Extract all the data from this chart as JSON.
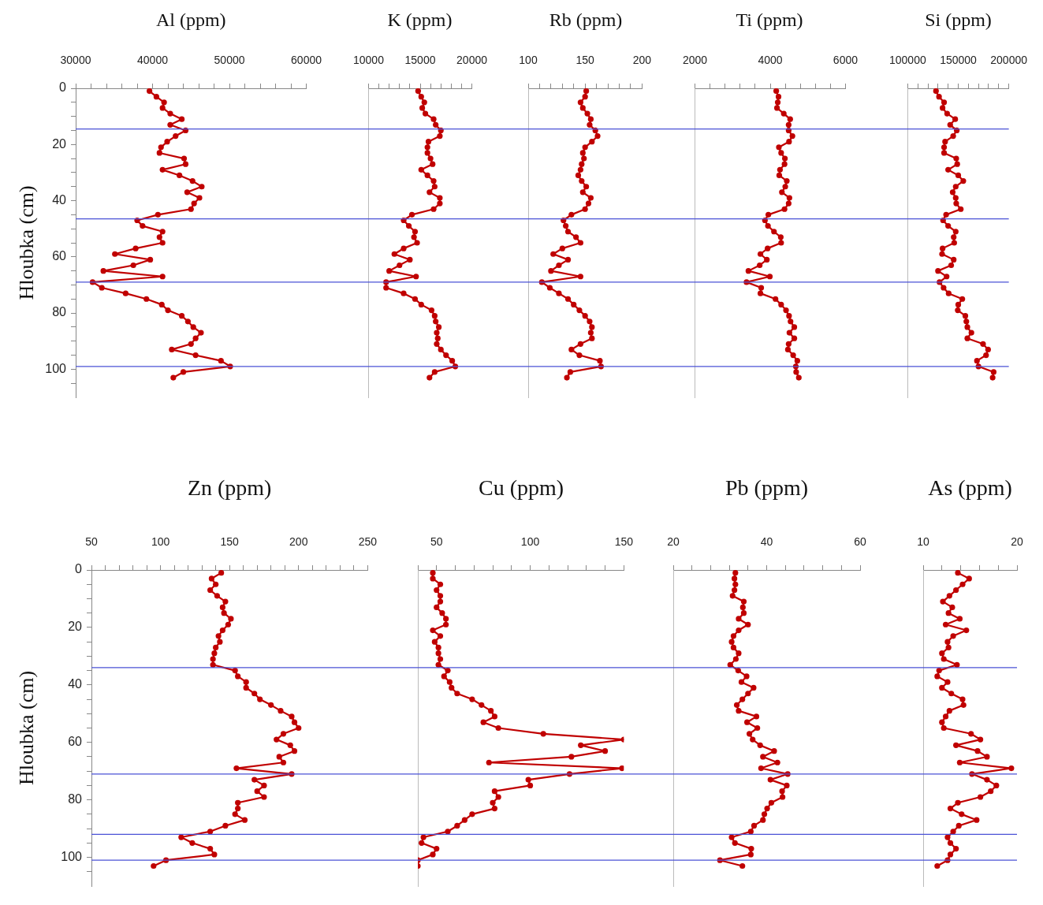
{
  "chart_data": [
    {
      "type": "line",
      "title": "Al (ppm)",
      "ylabel": "Hloubka (cm)",
      "marker": "circle",
      "series": [
        {
          "color": "#c00000",
          "x": [
            39600,
            40500,
            41500,
            41300,
            42300,
            43800,
            42300,
            44300,
            43000,
            41900,
            41100,
            40900,
            44100,
            44300,
            41300,
            43500,
            45200,
            46400,
            44500,
            46100,
            45400,
            45000,
            40700,
            38000,
            38700,
            41300,
            40900,
            41300,
            37800,
            35100,
            39700,
            37500,
            33600,
            41300,
            32200,
            33400,
            36500,
            39200,
            41200,
            42000,
            43800,
            44600,
            45300,
            46300,
            45600,
            45000,
            42500,
            45600,
            48900,
            50100,
            44000,
            42700
          ],
          "values": [
            1,
            3,
            5,
            7,
            9,
            11,
            13,
            15,
            17,
            19,
            21,
            23,
            25,
            27,
            29,
            31,
            33,
            35,
            37,
            39,
            41,
            43,
            45,
            47,
            49,
            51,
            53,
            55,
            57,
            59,
            61,
            63,
            65,
            67,
            69,
            71,
            73,
            75,
            77,
            79,
            81,
            83,
            85,
            87,
            89,
            91,
            93,
            95,
            97,
            99,
            101,
            103
          ]
        }
      ],
      "xlim": [
        30000,
        60000
      ],
      "xticks": [
        30000,
        {
          "value": 32000,
          "label": null
        },
        {
          "value": 34000,
          "label": null
        },
        {
          "value": 36000,
          "label": null
        },
        {
          "value": 38000,
          "label": null
        },
        40000,
        {
          "value": 42000,
          "label": null
        },
        {
          "value": 44000,
          "label": null
        },
        {
          "value": 46000,
          "label": null
        },
        {
          "value": 48000,
          "label": null
        },
        50000,
        {
          "value": 52000,
          "label": null
        },
        {
          "value": 54000,
          "label": null
        },
        {
          "value": 56000,
          "label": null
        },
        {
          "value": 58000,
          "label": null
        },
        60000
      ],
      "ylim": [
        110,
        0
      ],
      "yticks": [
        0,
        {
          "value": 5,
          "label": null
        },
        {
          "value": 10,
          "label": null
        },
        {
          "value": 15,
          "label": null
        },
        20,
        {
          "value": 25,
          "label": null
        },
        {
          "value": 30,
          "label": null
        },
        {
          "value": 35,
          "label": null
        },
        40,
        {
          "value": 45,
          "label": null
        },
        {
          "value": 50,
          "label": null
        },
        {
          "value": 55,
          "label": null
        },
        60,
        {
          "value": 65,
          "label": null
        },
        {
          "value": 70,
          "label": null
        },
        {
          "value": 75,
          "label": null
        },
        80,
        {
          "value": 85,
          "label": null
        },
        {
          "value": 90,
          "label": null
        },
        {
          "value": 95,
          "label": null
        },
        100,
        {
          "value": 105,
          "label": null
        }
      ],
      "ref_lines": [
        {
          "axis": "y",
          "value": 14.5,
          "color": "#4a52d6"
        },
        {
          "axis": "y",
          "value": 46.5,
          "color": "#4a52d6"
        },
        {
          "axis": "y",
          "value": 69,
          "color": "#4a52d6"
        },
        {
          "axis": "y",
          "value": 99,
          "color": "#4a52d6"
        }
      ]
    },
    {
      "type": "line",
      "title": "K (ppm)",
      "marker": "circle",
      "tick_labels": "x",
      "series": [
        {
          "color": "#c00000",
          "x": [
            14800,
            15100,
            15400,
            15200,
            15500,
            16300,
            16500,
            17000,
            16900,
            15800,
            15700,
            15700,
            16000,
            16200,
            15100,
            15700,
            16300,
            16400,
            15900,
            16900,
            16900,
            16300,
            14200,
            13400,
            13900,
            14500,
            14400,
            14700,
            13400,
            12500,
            14000,
            13000,
            12000,
            14600,
            11700,
            11700,
            13400,
            14500,
            15100,
            16100,
            16400,
            16500,
            16800,
            16600,
            16700,
            16600,
            17000,
            17500,
            18100,
            18400,
            16400,
            15900
          ],
          "values": [
            1,
            3,
            5,
            7,
            9,
            11,
            13,
            15,
            17,
            19,
            21,
            23,
            25,
            27,
            29,
            31,
            33,
            35,
            37,
            39,
            41,
            43,
            45,
            47,
            49,
            51,
            53,
            55,
            57,
            59,
            61,
            63,
            65,
            67,
            69,
            71,
            73,
            75,
            77,
            79,
            81,
            83,
            85,
            87,
            89,
            91,
            93,
            95,
            97,
            99,
            101,
            103
          ]
        }
      ],
      "ylim": [
        110,
        0
      ],
      "xlim": [
        10000,
        20000
      ],
      "xticks": [
        10000,
        {
          "value": 11000,
          "label": null
        },
        {
          "value": 12000,
          "label": null
        },
        {
          "value": 13000,
          "label": null
        },
        {
          "value": 14000,
          "label": null
        },
        15000,
        {
          "value": 16000,
          "label": null
        },
        {
          "value": 17000,
          "label": null
        },
        {
          "value": 18000,
          "label": null
        },
        {
          "value": 19000,
          "label": null
        },
        20000
      ],
      "ref_lines": [
        {
          "axis": "y",
          "value": 14.5,
          "color": "#4a52d6"
        },
        {
          "axis": "y",
          "value": 46.5,
          "color": "#4a52d6"
        },
        {
          "axis": "y",
          "value": 69,
          "color": "#4a52d6"
        },
        {
          "axis": "y",
          "value": 99,
          "color": "#4a52d6"
        }
      ]
    },
    {
      "type": "line",
      "title": "Rb (ppm)",
      "marker": "circle",
      "tick_labels": "x",
      "series": [
        {
          "color": "#c00000",
          "x": [
            151,
            150,
            146,
            148,
            152,
            155,
            154,
            159,
            161,
            156,
            150,
            148,
            149,
            147,
            146,
            144,
            147,
            151,
            148,
            155,
            153,
            150,
            138,
            131,
            133,
            135,
            142,
            146,
            130,
            122,
            135,
            127,
            120,
            146,
            112,
            119,
            127,
            135,
            140,
            145,
            150,
            154,
            156,
            155,
            156,
            146,
            138,
            145,
            163,
            164,
            137,
            134
          ],
          "values": [
            1,
            3,
            5,
            7,
            9,
            11,
            13,
            15,
            17,
            19,
            21,
            23,
            25,
            27,
            29,
            31,
            33,
            35,
            37,
            39,
            41,
            43,
            45,
            47,
            49,
            51,
            53,
            55,
            57,
            59,
            61,
            63,
            65,
            67,
            69,
            71,
            73,
            75,
            77,
            79,
            81,
            83,
            85,
            87,
            89,
            91,
            93,
            95,
            97,
            99,
            101,
            103
          ]
        }
      ],
      "ylim": [
        110,
        0
      ],
      "xlim": [
        100,
        200
      ],
      "xticks": [
        100,
        {
          "value": 110,
          "label": null
        },
        {
          "value": 120,
          "label": null
        },
        {
          "value": 130,
          "label": null
        },
        {
          "value": 140,
          "label": null
        },
        150,
        {
          "value": 160,
          "label": null
        },
        {
          "value": 170,
          "label": null
        },
        {
          "value": 180,
          "label": null
        },
        {
          "value": 190,
          "label": null
        },
        200
      ],
      "ref_lines": [
        {
          "axis": "y",
          "value": 14.5,
          "color": "#4a52d6"
        },
        {
          "axis": "y",
          "value": 46.5,
          "color": "#4a52d6"
        },
        {
          "axis": "y",
          "value": 69,
          "color": "#4a52d6"
        },
        {
          "axis": "y",
          "value": 99,
          "color": "#4a52d6"
        }
      ]
    },
    {
      "type": "line",
      "title": "Ti (ppm)",
      "marker": "circle",
      "tick_labels": "x",
      "series": [
        {
          "color": "#c00000",
          "x": [
            4160,
            4220,
            4200,
            4180,
            4360,
            4530,
            4490,
            4490,
            4590,
            4500,
            4230,
            4290,
            4390,
            4380,
            4260,
            4240,
            4440,
            4400,
            4310,
            4510,
            4490,
            4380,
            3950,
            3860,
            3940,
            4100,
            4280,
            4290,
            3930,
            3740,
            3910,
            3720,
            3420,
            3990,
            3370,
            3760,
            3740,
            4140,
            4290,
            4420,
            4500,
            4540,
            4640,
            4510,
            4640,
            4490,
            4470,
            4610,
            4720,
            4680,
            4690,
            4760
          ],
          "values": [
            1,
            3,
            5,
            7,
            9,
            11,
            13,
            15,
            17,
            19,
            21,
            23,
            25,
            27,
            29,
            31,
            33,
            35,
            37,
            39,
            41,
            43,
            45,
            47,
            49,
            51,
            53,
            55,
            57,
            59,
            61,
            63,
            65,
            67,
            69,
            71,
            73,
            75,
            77,
            79,
            81,
            83,
            85,
            87,
            89,
            91,
            93,
            95,
            97,
            99,
            101,
            103
          ]
        }
      ],
      "ylim": [
        110,
        0
      ],
      "xlim": [
        2000,
        6000
      ],
      "xticks": [
        2000,
        {
          "value": 2400,
          "label": null
        },
        {
          "value": 2800,
          "label": null
        },
        {
          "value": 3200,
          "label": null
        },
        {
          "value": 3600,
          "label": null
        },
        4000,
        {
          "value": 4400,
          "label": null
        },
        {
          "value": 4800,
          "label": null
        },
        {
          "value": 5200,
          "label": null
        },
        {
          "value": 5600,
          "label": null
        },
        6000
      ],
      "ref_lines": [
        {
          "axis": "y",
          "value": 14.5,
          "color": "#4a52d6"
        },
        {
          "axis": "y",
          "value": 46.5,
          "color": "#4a52d6"
        },
        {
          "axis": "y",
          "value": 69,
          "color": "#4a52d6"
        },
        {
          "axis": "y",
          "value": 99,
          "color": "#4a52d6"
        }
      ]
    },
    {
      "type": "line",
      "title": "Si (ppm)",
      "marker": "circle",
      "tick_labels": "x",
      "series": [
        {
          "color": "#c00000",
          "x": [
            128000,
            131000,
            136000,
            134500,
            139000,
            147000,
            142000,
            148500,
            145000,
            137000,
            136000,
            136000,
            148000,
            149000,
            140000,
            150000,
            155000,
            147500,
            144500,
            147500,
            148000,
            152500,
            138000,
            135000,
            140000,
            147500,
            145500,
            146000,
            134500,
            134000,
            145500,
            143000,
            130000,
            138500,
            131500,
            135500,
            140500,
            154000,
            150000,
            149500,
            157000,
            158000,
            159000,
            163000,
            159000,
            174500,
            179500,
            177500,
            168500,
            170000,
            185000,
            184000
          ],
          "values": [
            1,
            3,
            5,
            7,
            9,
            11,
            13,
            15,
            17,
            19,
            21,
            23,
            25,
            27,
            29,
            31,
            33,
            35,
            37,
            39,
            41,
            43,
            45,
            47,
            49,
            51,
            53,
            55,
            57,
            59,
            61,
            63,
            65,
            67,
            69,
            71,
            73,
            75,
            77,
            79,
            81,
            83,
            85,
            87,
            89,
            91,
            93,
            95,
            97,
            99,
            101,
            103
          ]
        }
      ],
      "ylim": [
        110,
        0
      ],
      "xlim": [
        100000,
        200000
      ],
      "xticks": [
        100000,
        {
          "value": 110000,
          "label": null
        },
        {
          "value": 120000,
          "label": null
        },
        {
          "value": 130000,
          "label": null
        },
        {
          "value": 140000,
          "label": null
        },
        150000,
        {
          "value": 160000,
          "label": null
        },
        {
          "value": 170000,
          "label": null
        },
        {
          "value": 180000,
          "label": null
        },
        {
          "value": 190000,
          "label": null
        },
        200000
      ],
      "ref_lines": [
        {
          "axis": "y",
          "value": 14.5,
          "color": "#4a52d6"
        },
        {
          "axis": "y",
          "value": 46.5,
          "color": "#4a52d6"
        },
        {
          "axis": "y",
          "value": 69,
          "color": "#4a52d6"
        },
        {
          "axis": "y",
          "value": 99,
          "color": "#4a52d6"
        }
      ]
    },
    {
      "type": "line",
      "title": "Zn (ppm)",
      "ylabel": "Hloubka (cm)",
      "marker": "circle",
      "series": [
        {
          "color": "#c00000",
          "x": [
            144,
            137,
            140,
            136,
            141,
            147,
            145,
            146,
            151,
            149,
            145,
            142,
            143,
            140,
            139,
            138,
            138,
            154,
            156,
            162,
            162,
            168,
            172,
            180,
            187,
            195,
            197,
            200,
            189,
            184,
            194,
            197,
            186,
            189,
            155,
            195,
            168,
            175,
            170,
            175,
            156,
            156,
            154,
            161,
            147,
            136,
            115,
            123,
            136,
            139,
            104,
            95
          ],
          "values": [
            1,
            3,
            5,
            7,
            9,
            11,
            13,
            15,
            17,
            19,
            21,
            23,
            25,
            27,
            29,
            31,
            33,
            35,
            37,
            39,
            41,
            43,
            45,
            47,
            49,
            51,
            53,
            55,
            57,
            59,
            61,
            63,
            65,
            67,
            69,
            71,
            73,
            75,
            77,
            79,
            81,
            83,
            85,
            87,
            89,
            91,
            93,
            95,
            97,
            99,
            101,
            103
          ]
        }
      ],
      "xlim": [
        50,
        250
      ],
      "xticks": [
        50,
        {
          "value": 60,
          "label": null
        },
        {
          "value": 70,
          "label": null
        },
        {
          "value": 80,
          "label": null
        },
        {
          "value": 90,
          "label": null
        },
        100,
        {
          "value": 110,
          "label": null
        },
        {
          "value": 120,
          "label": null
        },
        {
          "value": 130,
          "label": null
        },
        {
          "value": 140,
          "label": null
        },
        150,
        {
          "value": 160,
          "label": null
        },
        {
          "value": 170,
          "label": null
        },
        {
          "value": 180,
          "label": null
        },
        {
          "value": 190,
          "label": null
        },
        200,
        {
          "value": 210,
          "label": null
        },
        {
          "value": 220,
          "label": null
        },
        {
          "value": 230,
          "label": null
        },
        {
          "value": 240,
          "label": null
        },
        250
      ],
      "ylim": [
        110,
        0
      ],
      "yticks": [
        0,
        {
          "value": 5,
          "label": null
        },
        {
          "value": 10,
          "label": null
        },
        {
          "value": 15,
          "label": null
        },
        20,
        {
          "value": 25,
          "label": null
        },
        {
          "value": 30,
          "label": null
        },
        {
          "value": 35,
          "label": null
        },
        40,
        {
          "value": 45,
          "label": null
        },
        {
          "value": 50,
          "label": null
        },
        {
          "value": 55,
          "label": null
        },
        60,
        {
          "value": 65,
          "label": null
        },
        {
          "value": 70,
          "label": null
        },
        {
          "value": 75,
          "label": null
        },
        80,
        {
          "value": 85,
          "label": null
        },
        {
          "value": 90,
          "label": null
        },
        {
          "value": 95,
          "label": null
        },
        100,
        {
          "value": 105,
          "label": null
        }
      ],
      "ref_lines": [
        {
          "axis": "y",
          "value": 34,
          "color": "#4a52d6"
        },
        {
          "axis": "y",
          "value": 71,
          "color": "#4a52d6"
        },
        {
          "axis": "y",
          "value": 92,
          "color": "#4a52d6"
        },
        {
          "axis": "y",
          "value": 101,
          "color": "#4a52d6"
        }
      ]
    },
    {
      "type": "line",
      "title": "Cu (ppm)",
      "marker": "circle",
      "tick_labels": "x",
      "series": [
        {
          "color": "#c00000",
          "x": [
            48,
            48,
            52,
            50,
            52,
            52,
            50,
            53,
            55,
            55,
            48,
            52,
            49,
            51,
            51,
            52,
            51,
            56,
            54,
            57,
            58,
            61,
            69,
            74,
            79,
            81,
            75,
            83,
            107,
            150,
            127,
            140,
            122,
            78,
            149,
            121,
            99,
            100,
            81,
            83,
            80,
            81,
            69,
            65,
            61,
            56,
            43,
            42,
            50,
            48,
            40,
            40
          ],
          "values": [
            1,
            3,
            5,
            7,
            9,
            11,
            13,
            15,
            17,
            19,
            21,
            23,
            25,
            27,
            29,
            31,
            33,
            35,
            37,
            39,
            41,
            43,
            45,
            47,
            49,
            51,
            53,
            55,
            57,
            59,
            61,
            63,
            65,
            67,
            69,
            71,
            73,
            75,
            77,
            79,
            81,
            83,
            85,
            87,
            89,
            91,
            93,
            95,
            97,
            99,
            101,
            103
          ]
        }
      ],
      "ylim": [
        110,
        0
      ],
      "xlim": [
        40,
        150
      ],
      "xticks": [
        {
          "value": 40,
          "label": null
        },
        50,
        {
          "value": 60,
          "label": null
        },
        {
          "value": 70,
          "label": null
        },
        {
          "value": 80,
          "label": null
        },
        {
          "value": 90,
          "label": null
        },
        100,
        {
          "value": 110,
          "label": null
        },
        {
          "value": 120,
          "label": null
        },
        {
          "value": 130,
          "label": null
        },
        {
          "value": 140,
          "label": null
        },
        150
      ],
      "ref_lines": [
        {
          "axis": "y",
          "value": 34,
          "color": "#4a52d6"
        },
        {
          "axis": "y",
          "value": 71,
          "color": "#4a52d6"
        },
        {
          "axis": "y",
          "value": 92,
          "color": "#4a52d6"
        },
        {
          "axis": "y",
          "value": 101,
          "color": "#4a52d6"
        }
      ]
    },
    {
      "type": "line",
      "title": "Pb (ppm)",
      "marker": "circle",
      "tick_labels": "x",
      "series": [
        {
          "color": "#c00000",
          "x": [
            33.3,
            33.1,
            33.3,
            33.1,
            32.7,
            35.1,
            34.9,
            35.1,
            34,
            36,
            34,
            32.9,
            32.5,
            32.9,
            34,
            33.4,
            32.2,
            33.9,
            35.7,
            34.6,
            37.2,
            36,
            34.8,
            33.6,
            34,
            37.8,
            35.8,
            38,
            36.3,
            37,
            38.6,
            41.6,
            39.2,
            42.3,
            38.8,
            44.5,
            40.8,
            44.3,
            43.3,
            43.4,
            41,
            40.1,
            39.5,
            39.2,
            37.3,
            36.6,
            32.5,
            33.2,
            36.7,
            36.6,
            30,
            34.8
          ],
          "values": [
            1,
            3,
            5,
            7,
            9,
            11,
            13,
            15,
            17,
            19,
            21,
            23,
            25,
            27,
            29,
            31,
            33,
            35,
            37,
            39,
            41,
            43,
            45,
            47,
            49,
            51,
            53,
            55,
            57,
            59,
            61,
            63,
            65,
            67,
            69,
            71,
            73,
            75,
            77,
            79,
            81,
            83,
            85,
            87,
            89,
            91,
            93,
            95,
            97,
            99,
            101,
            103
          ]
        }
      ],
      "ylim": [
        110,
        0
      ],
      "xlim": [
        20,
        60
      ],
      "xticks": [
        20,
        {
          "value": 24,
          "label": null
        },
        {
          "value": 28,
          "label": null
        },
        {
          "value": 32,
          "label": null
        },
        {
          "value": 36,
          "label": null
        },
        40,
        {
          "value": 44,
          "label": null
        },
        {
          "value": 48,
          "label": null
        },
        {
          "value": 52,
          "label": null
        },
        {
          "value": 56,
          "label": null
        },
        60
      ],
      "ref_lines": [
        {
          "axis": "y",
          "value": 34,
          "color": "#4a52d6"
        },
        {
          "axis": "y",
          "value": 71,
          "color": "#4a52d6"
        },
        {
          "axis": "y",
          "value": 92,
          "color": "#4a52d6"
        },
        {
          "axis": "y",
          "value": 101,
          "color": "#4a52d6"
        }
      ]
    },
    {
      "type": "line",
      "title": "As (ppm)",
      "marker": "circle",
      "tick_labels": "x",
      "series": [
        {
          "color": "#c00000",
          "x": [
            13.7,
            14.9,
            14.2,
            13.5,
            12.8,
            12.1,
            13.1,
            12.7,
            13.9,
            12.4,
            14.6,
            13.2,
            12.6,
            12.7,
            12,
            12.2,
            13.6,
            11.7,
            11.5,
            12.6,
            12,
            13,
            14.2,
            14.3,
            12.8,
            12.4,
            12,
            12.2,
            15.1,
            16.1,
            13.5,
            15.8,
            16.8,
            13.9,
            19.4,
            15.2,
            16.8,
            17.8,
            17.2,
            16.1,
            13.7,
            12.9,
            14.1,
            15.7,
            13.8,
            13.2,
            12.6,
            12.9,
            13.5,
            12.9,
            12.6,
            11.5
          ],
          "values": [
            1,
            3,
            5,
            7,
            9,
            11,
            13,
            15,
            17,
            19,
            21,
            23,
            25,
            27,
            29,
            31,
            33,
            35,
            37,
            39,
            41,
            43,
            45,
            47,
            49,
            51,
            53,
            55,
            57,
            59,
            61,
            63,
            65,
            67,
            69,
            71,
            73,
            75,
            77,
            79,
            81,
            83,
            85,
            87,
            89,
            91,
            93,
            95,
            97,
            99,
            101,
            103
          ]
        }
      ],
      "ylim": [
        110,
        0
      ],
      "xlim": [
        10,
        20
      ],
      "xticks": [
        10,
        {
          "value": 12,
          "label": null
        },
        {
          "value": 14,
          "label": null
        },
        {
          "value": 16,
          "label": null
        },
        {
          "value": 18,
          "label": null
        },
        20
      ],
      "ref_lines": [
        {
          "axis": "y",
          "value": 34,
          "color": "#4a52d6"
        },
        {
          "axis": "y",
          "value": 71,
          "color": "#4a52d6"
        },
        {
          "axis": "y",
          "value": 92,
          "color": "#4a52d6"
        },
        {
          "axis": "y",
          "value": 101,
          "color": "#4a52d6"
        }
      ]
    }
  ]
}
